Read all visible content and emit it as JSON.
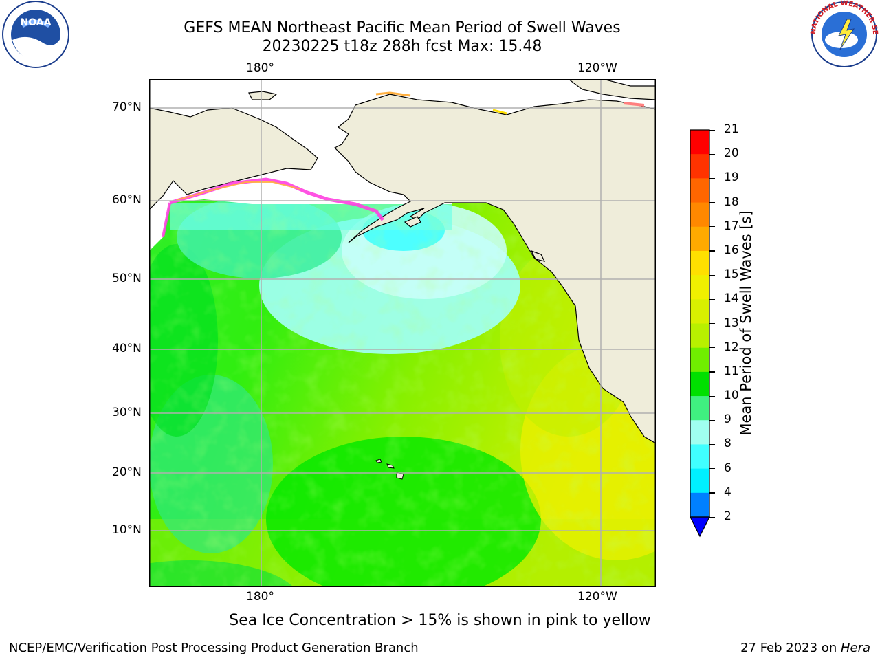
{
  "title": {
    "line1": "GEFS MEAN Northeast Pacific Mean Period of Swell Waves",
    "line2": "20230225 t18z 288h fcst   Max: 15.48"
  },
  "logos": {
    "left": "NOAA",
    "right": "NATIONAL WEATHER SERVICE"
  },
  "map": {
    "lon_labels_top": [
      "180°",
      "120°W"
    ],
    "lon_labels_bottom": [
      "180°",
      "120°W"
    ],
    "lat_labels": [
      "70°N",
      "60°N",
      "50°N",
      "40°N",
      "30°N",
      "20°N",
      "10°N"
    ]
  },
  "colorbar": {
    "label": "Mean Period of Swell Waves [s]",
    "ticks": [
      "21",
      "20",
      "19",
      "18",
      "17",
      "16",
      "15",
      "14",
      "13",
      "12",
      "11",
      "10",
      "9",
      "8",
      "6",
      "4",
      "2"
    ],
    "colors": [
      "#ff0000",
      "#ff3300",
      "#ff6600",
      "#ff8800",
      "#ffaa00",
      "#ffe000",
      "#f0f000",
      "#d8f000",
      "#b8f000",
      "#70ee00",
      "#00e000",
      "#40f080",
      "#a0fff0",
      "#40ffff",
      "#00f0ff",
      "#0080ff"
    ],
    "under_color": "#0000ff"
  },
  "note": "Sea Ice Concentration > 15% is shown in pink to yellow",
  "footer": {
    "left": "NCEP/EMC/Verification Post Processing Product Generation Branch",
    "right_date": "27 Feb 2023 on ",
    "right_machine": "Hera"
  }
}
